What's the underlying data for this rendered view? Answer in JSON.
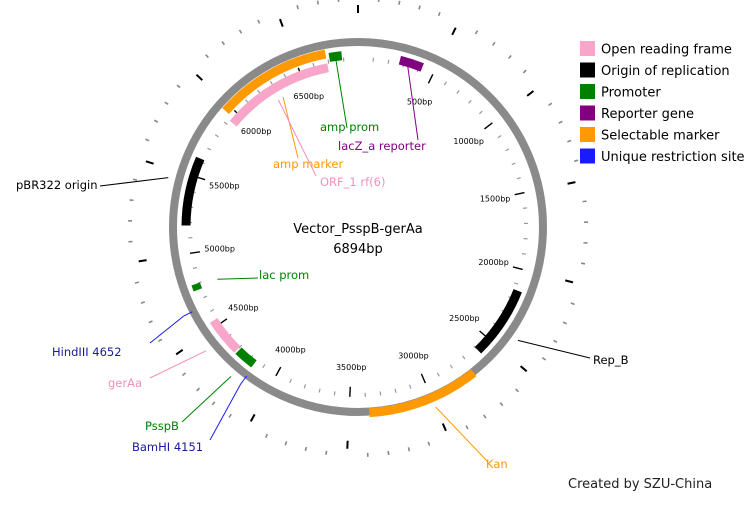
{
  "plasmid": {
    "name": "Vector_PsspB-gerAa",
    "length_label": "6894bp",
    "length": 6894
  },
  "credit": "Created by SZU-China",
  "legend": [
    {
      "label": "Open reading frame",
      "color": "#f7a5c9"
    },
    {
      "label": "Origin of replication",
      "color": "#000000"
    },
    {
      "label": "Promoter",
      "color": "#008000"
    },
    {
      "label": "Reporter gene",
      "color": "#800080"
    },
    {
      "label": "Selectable marker",
      "color": "#ff9900"
    },
    {
      "label": "Unique restriction site",
      "color": "#1a1aff"
    }
  ],
  "ticks": [
    {
      "bp": 500,
      "label": "500bp"
    },
    {
      "bp": 1000,
      "label": "1000bp"
    },
    {
      "bp": 1500,
      "label": "1500bp"
    },
    {
      "bp": 2000,
      "label": "2000bp"
    },
    {
      "bp": 2500,
      "label": "2500bp"
    },
    {
      "bp": 3000,
      "label": "3000bp"
    },
    {
      "bp": 3500,
      "label": "3500bp"
    },
    {
      "bp": 4000,
      "label": "4000bp"
    },
    {
      "bp": 4500,
      "label": "4500bp"
    },
    {
      "bp": 5000,
      "label": "5000bp"
    },
    {
      "bp": 5500,
      "label": "5500bp"
    },
    {
      "bp": 6000,
      "label": "6000bp"
    },
    {
      "bp": 6500,
      "label": "6500bp"
    }
  ],
  "features": [
    {
      "name": "amp prom",
      "type": "promoter",
      "color": "#008000",
      "start": 6710,
      "end": 6790,
      "strand": -1
    },
    {
      "name": "lacZ_a reporter",
      "type": "reporter",
      "color": "#800080",
      "start": 270,
      "end": 420,
      "strand": 1
    },
    {
      "name": "amp marker",
      "type": "marker",
      "color": "#ff9900",
      "start": 5960,
      "end": 6690,
      "strand": -1
    },
    {
      "name": "ORF_1 rf(6)",
      "type": "orf",
      "color": "#f7a5c9",
      "start": 5930,
      "end": 6690,
      "strand": -1
    },
    {
      "name": "pBR322 origin",
      "type": "origin",
      "color": "#000000",
      "start": 5180,
      "end": 5620,
      "strand": 1
    },
    {
      "name": "lac prom",
      "type": "promoter",
      "color": "#008000",
      "start": 4760,
      "end": 4800,
      "strand": -1
    },
    {
      "name": "Rep_B",
      "type": "origin",
      "color": "#000000",
      "start": 2140,
      "end": 2600,
      "strand": 1
    },
    {
      "name": "Kan",
      "type": "marker",
      "color": "#ff9900",
      "start": 2710,
      "end": 3380,
      "strand": -1
    },
    {
      "name": "PsspB",
      "type": "promoter",
      "color": "#008000",
      "start": 4160,
      "end": 4290,
      "strand": 1
    },
    {
      "name": "gerAa",
      "type": "orf",
      "color": "#f7a5c9",
      "start": 4300,
      "end": 4540,
      "strand": 1
    }
  ],
  "sites": [
    {
      "name": "HindIII 4652",
      "color": "#1a1aff",
      "bp": 4652
    },
    {
      "name": "BamHI 4151",
      "color": "#1a1aff",
      "bp": 4151
    }
  ]
}
